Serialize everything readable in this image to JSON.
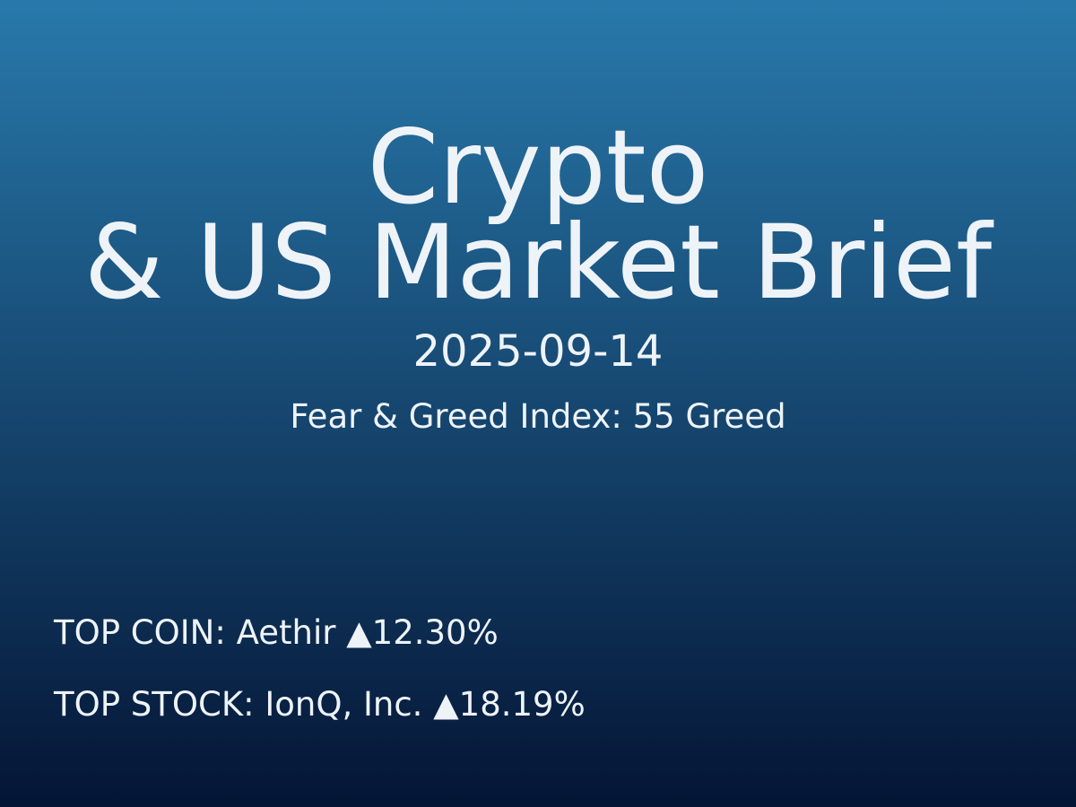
{
  "colors": {
    "background_top": "#2879ab",
    "background_bottom": "#041535",
    "text": "#eef3f8"
  },
  "title": {
    "line1": "Crypto",
    "line2": "& US Market Brief"
  },
  "date": "2025-09-14",
  "fear_greed": "Fear & Greed Index: 55 Greed",
  "top_coin": "TOP COIN: Aethir ▲12.30%",
  "top_stock": "TOP STOCK: IonQ, Inc. ▲18.19%"
}
